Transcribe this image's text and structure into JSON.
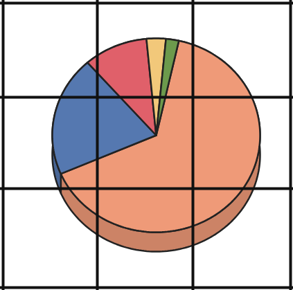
{
  "chart_data": {
    "type": "pie",
    "values": [
      65,
      20,
      10,
      3,
      2
    ],
    "colors": [
      "#ef9a78",
      "#5578b0",
      "#e0606a",
      "#f2c87a",
      "#6c9a4c"
    ],
    "grid": true
  }
}
